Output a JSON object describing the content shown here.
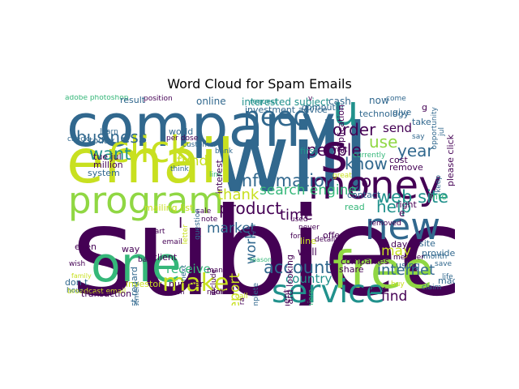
{
  "chart_data": {
    "type": "wordcloud",
    "title": "Word Cloud for Spam Emails",
    "palette": [
      "#440154",
      "#31688e",
      "#21918c",
      "#35b779",
      "#90d743",
      "#c8e020"
    ],
    "words": [
      {
        "text": "subject",
        "weight": 100,
        "color": "#440154",
        "vertical": false
      },
      {
        "text": "will",
        "weight": 78,
        "color": "#31688e",
        "vertical": false
      },
      {
        "text": "company",
        "weight": 48,
        "color": "#31688e",
        "vertical": false
      },
      {
        "text": "email",
        "weight": 50,
        "color": "#c8e020",
        "vertical": false
      },
      {
        "text": "free",
        "weight": 42,
        "color": "#90d743",
        "vertical": false
      },
      {
        "text": "one",
        "weight": 40,
        "color": "#35b779",
        "vertical": false
      },
      {
        "text": "s",
        "weight": 44,
        "color": "#440154",
        "vertical": false
      },
      {
        "text": "u",
        "weight": 34,
        "color": "#21918c",
        "vertical": false
      },
      {
        "text": "money",
        "weight": 32,
        "color": "#440154",
        "vertical": false
      },
      {
        "text": "program",
        "weight": 30,
        "color": "#90d743",
        "vertical": false
      },
      {
        "text": "click",
        "weight": 30,
        "color": "#c8e020",
        "vertical": false
      },
      {
        "text": "new",
        "weight": 30,
        "color": "#31688e",
        "vertical": false
      },
      {
        "text": "service",
        "weight": 26,
        "color": "#21918c",
        "vertical": false
      },
      {
        "text": "need",
        "weight": 22,
        "color": "#31688e",
        "vertical": false
      },
      {
        "text": "make",
        "weight": 20,
        "color": "#c8e020",
        "vertical": false
      },
      {
        "text": "information",
        "weight": 14,
        "color": "#31688e",
        "vertical": false
      },
      {
        "text": "account",
        "weight": 14,
        "color": "#31688e",
        "vertical": false
      },
      {
        "text": "web site",
        "weight": 14,
        "color": "#21918c",
        "vertical": false
      },
      {
        "text": "want",
        "weight": 14,
        "color": "#21918c",
        "vertical": false
      },
      {
        "text": "business",
        "weight": 13,
        "color": "#31688e",
        "vertical": false
      },
      {
        "text": "people",
        "weight": 13,
        "color": "#440154",
        "vertical": false
      },
      {
        "text": "order",
        "weight": 13,
        "color": "#440154",
        "vertical": false
      },
      {
        "text": "year",
        "weight": 13,
        "color": "#31688e",
        "vertical": false
      },
      {
        "text": "help",
        "weight": 13,
        "color": "#21918c",
        "vertical": false
      },
      {
        "text": "know",
        "weight": 13,
        "color": "#31688e",
        "vertical": false
      },
      {
        "text": "go",
        "weight": 14,
        "color": "#440154",
        "vertical": false
      },
      {
        "text": "use",
        "weight": 13,
        "color": "#90d743",
        "vertical": false
      },
      {
        "text": "product",
        "weight": 13,
        "color": "#440154",
        "vertical": false
      },
      {
        "text": "thank",
        "weight": 12,
        "color": "#c8e020",
        "vertical": false
      },
      {
        "text": "internet",
        "weight": 12,
        "color": "#31688e",
        "vertical": false
      },
      {
        "text": "time",
        "weight": 12,
        "color": "#440154",
        "vertical": false
      },
      {
        "text": "market",
        "weight": 11,
        "color": "#31688e",
        "vertical": false
      },
      {
        "text": "fund",
        "weight": 11,
        "color": "#c8e020",
        "vertical": false
      },
      {
        "text": "search engine",
        "weight": 11,
        "color": "#35b779",
        "vertical": false
      },
      {
        "text": "may",
        "weight": 11,
        "color": "#c8e020",
        "vertical": false
      },
      {
        "text": "find",
        "weight": 11,
        "color": "#440154",
        "vertical": false
      },
      {
        "text": "receive",
        "weight": 10,
        "color": "#35b779",
        "vertical": false
      },
      {
        "text": "country",
        "weight": 10,
        "color": "#21918c",
        "vertical": false
      },
      {
        "text": "send",
        "weight": 10,
        "color": "#440154",
        "vertical": false
      },
      {
        "text": "work",
        "weight": 11,
        "color": "#31688e",
        "vertical": true
      },
      {
        "text": "report",
        "weight": 11,
        "color": "#c8e020",
        "vertical": true
      },
      {
        "text": "email address",
        "weight": 12,
        "color": "#31688e",
        "vertical": true
      },
      {
        "text": "interested subject",
        "weight": 8,
        "color": "#21918c",
        "vertical": false
      },
      {
        "text": "investment advice",
        "weight": 7,
        "color": "#31688e",
        "vertical": false
      },
      {
        "text": "adobe photoshop",
        "weight": 6,
        "color": "#35b779",
        "vertical": false
      },
      {
        "text": "position",
        "weight": 6,
        "color": "#440154",
        "vertical": false
      },
      {
        "text": "result",
        "weight": 7,
        "color": "#31688e",
        "vertical": false
      },
      {
        "text": "online",
        "weight": 8,
        "color": "#31688e",
        "vertical": false
      },
      {
        "text": "cash",
        "weight": 8,
        "color": "#31688e",
        "vertical": false
      },
      {
        "text": "now",
        "weight": 8,
        "color": "#31688e",
        "vertical": false
      },
      {
        "text": "come",
        "weight": 6,
        "color": "#31688e",
        "vertical": false
      },
      {
        "text": "request",
        "weight": 6,
        "color": "#21918c",
        "vertical": false
      },
      {
        "text": "computer",
        "weight": 7,
        "color": "#31688e",
        "vertical": false
      },
      {
        "text": "technology",
        "weight": 7,
        "color": "#31688e",
        "vertical": false
      },
      {
        "text": "give",
        "weight": 7,
        "color": "#31688e",
        "vertical": false
      },
      {
        "text": "take",
        "weight": 7,
        "color": "#31688e",
        "vertical": false
      },
      {
        "text": "say",
        "weight": 6,
        "color": "#31688e",
        "vertical": false
      },
      {
        "text": "cost",
        "weight": 7,
        "color": "#440154",
        "vertical": false
      },
      {
        "text": "remove",
        "weight": 7,
        "color": "#440154",
        "vertical": false
      },
      {
        "text": "currently",
        "weight": 6,
        "color": "#35b779",
        "vertical": false
      },
      {
        "text": "first",
        "weight": 7,
        "color": "#21918c",
        "vertical": false
      },
      {
        "text": "visit",
        "weight": 6,
        "color": "#440154",
        "vertical": false
      },
      {
        "text": "world",
        "weight": 7,
        "color": "#31688e",
        "vertical": false
      },
      {
        "text": "per dose",
        "weight": 6,
        "color": "#440154",
        "vertical": false
      },
      {
        "text": "customer",
        "weight": 6,
        "color": "#31688e",
        "vertical": false
      },
      {
        "text": "today",
        "weight": 7,
        "color": "#31688e",
        "vertical": false
      },
      {
        "text": "check",
        "weight": 6,
        "color": "#31688e",
        "vertical": false
      },
      {
        "text": "learn",
        "weight": 6,
        "color": "#31688e",
        "vertical": false
      },
      {
        "text": "tue jul",
        "weight": 7,
        "color": "#440154",
        "vertical": false
      },
      {
        "text": "million",
        "weight": 7,
        "color": "#440154",
        "vertical": false
      },
      {
        "text": "system",
        "weight": 7,
        "color": "#31688e",
        "vertical": false
      },
      {
        "text": "mailing list",
        "weight": 7,
        "color": "#c8e020",
        "vertical": false
      },
      {
        "text": "sale",
        "weight": 6,
        "color": "#440154",
        "vertical": false
      },
      {
        "text": "link",
        "weight": 6,
        "color": "#35b779",
        "vertical": false
      },
      {
        "text": "think",
        "weight": 6,
        "color": "#31688e",
        "vertical": false
      },
      {
        "text": "bank",
        "weight": 6,
        "color": "#31688e",
        "vertical": false
      },
      {
        "text": "look",
        "weight": 6,
        "color": "#440154",
        "vertical": false
      },
      {
        "text": "form",
        "weight": 6,
        "color": "#440154",
        "vertical": false
      },
      {
        "text": "used",
        "weight": 6,
        "color": "#440154",
        "vertical": false
      },
      {
        "text": "never",
        "weight": 6,
        "color": "#440154",
        "vertical": false
      },
      {
        "text": "great",
        "weight": 6,
        "color": "#c8e020",
        "vertical": false
      },
      {
        "text": "contact",
        "weight": 7,
        "color": "#31688e",
        "vertical": false
      },
      {
        "text": "removed",
        "weight": 6,
        "color": "#440154",
        "vertical": false
      },
      {
        "text": "right",
        "weight": 7,
        "color": "#440154",
        "vertical": false
      },
      {
        "text": "read",
        "weight": 7,
        "color": "#35b779",
        "vertical": false
      },
      {
        "text": "into",
        "weight": 7,
        "color": "#35b779",
        "vertical": false
      },
      {
        "text": "keep",
        "weight": 6,
        "color": "#31688e",
        "vertical": true
      },
      {
        "text": "site",
        "weight": 7,
        "color": "#31688e",
        "vertical": false
      },
      {
        "text": "day",
        "weight": 7,
        "color": "#440154",
        "vertical": false
      },
      {
        "text": "provide",
        "weight": 7,
        "color": "#31688e",
        "vertical": false
      },
      {
        "text": "month",
        "weight": 6,
        "color": "#31688e",
        "vertical": false
      },
      {
        "text": "save",
        "weight": 6,
        "color": "#31688e",
        "vertical": false
      },
      {
        "text": "life",
        "weight": 6,
        "color": "#31688e",
        "vertical": false
      },
      {
        "text": "made",
        "weight": 7,
        "color": "#31688e",
        "vertical": false
      },
      {
        "text": "claim",
        "weight": 6,
        "color": "#31688e",
        "vertical": false
      },
      {
        "text": "buy",
        "weight": 6,
        "color": "#c8e020",
        "vertical": false
      },
      {
        "text": "pay",
        "weight": 7,
        "color": "#440154",
        "vertical": false
      },
      {
        "text": "using",
        "weight": 7,
        "color": "#31688e",
        "vertical": false
      },
      {
        "text": "member",
        "weight": 6,
        "color": "#440154",
        "vertical": false
      },
      {
        "text": "companies",
        "weight": 7,
        "color": "#440154",
        "vertical": false
      },
      {
        "text": "share",
        "weight": 7,
        "color": "#440154",
        "vertical": false
      },
      {
        "text": "line",
        "weight": 7,
        "color": "#c8e020",
        "vertical": false
      },
      {
        "text": "offer",
        "weight": 7,
        "color": "#440154",
        "vertical": false
      },
      {
        "text": "detail",
        "weight": 6,
        "color": "#440154",
        "vertical": false
      },
      {
        "text": "well",
        "weight": 8,
        "color": "#440154",
        "vertical": false
      },
      {
        "text": "forward looking",
        "weight": 7,
        "color": "#440154",
        "vertical": true
      },
      {
        "text": "looking statement",
        "weight": 7,
        "color": "#440154",
        "vertical": true
      },
      {
        "text": "adobe premiere",
        "weight": 6,
        "color": "#35b779",
        "vertical": true
      },
      {
        "text": "opportunity",
        "weight": 6,
        "color": "#31688e",
        "vertical": true
      },
      {
        "text": "jul",
        "weight": 6,
        "color": "#31688e",
        "vertical": true
      },
      {
        "text": "please click",
        "weight": 7,
        "color": "#440154",
        "vertical": true
      },
      {
        "text": "week",
        "weight": 6,
        "color": "#440154",
        "vertical": false
      },
      {
        "text": "application",
        "weight": 7,
        "color": "#440154",
        "vertical": true
      },
      {
        "text": "soft viagra",
        "weight": 6,
        "color": "#440154",
        "vertical": true
      },
      {
        "text": "complete",
        "weight": 6,
        "color": "#31688e",
        "vertical": true
      },
      {
        "text": "next",
        "weight": 6,
        "color": "#31688e",
        "vertical": true
      },
      {
        "text": "include",
        "weight": 6,
        "color": "#440154",
        "vertical": true
      },
      {
        "text": "question",
        "weight": 6,
        "color": "#31688e",
        "vertical": true
      },
      {
        "text": "letter",
        "weight": 6,
        "color": "#c8e020",
        "vertical": true
      },
      {
        "text": "interest",
        "weight": 7,
        "color": "#440154",
        "vertical": true
      },
      {
        "text": "investment",
        "weight": 6,
        "color": "#31688e",
        "vertical": true
      },
      {
        "text": "note",
        "weight": 6,
        "color": "#440154",
        "vertical": false
      },
      {
        "text": "part",
        "weight": 6,
        "color": "#440154",
        "vertical": false
      },
      {
        "text": "email",
        "weight": 6,
        "color": "#440154",
        "vertical": false
      },
      {
        "text": "client",
        "weight": 7,
        "color": "#440154",
        "vertical": false
      },
      {
        "text": "way",
        "weight": 7,
        "color": "#440154",
        "vertical": false
      },
      {
        "text": "back",
        "weight": 6,
        "color": "#440154",
        "vertical": false
      },
      {
        "text": "best regard",
        "weight": 7,
        "color": "#31688e",
        "vertical": true
      },
      {
        "text": "hour",
        "weight": 6,
        "color": "#31688e",
        "vertical": false
      },
      {
        "text": "even",
        "weight": 7,
        "color": "#440154",
        "vertical": false
      },
      {
        "text": "wish",
        "weight": 6,
        "color": "#440154",
        "vertical": false
      },
      {
        "text": "family",
        "weight": 5,
        "color": "#c8e020",
        "vertical": false
      },
      {
        "text": "don t",
        "weight": 7,
        "color": "#31688e",
        "vertical": false
      },
      {
        "text": "broadcast email",
        "weight": 6,
        "color": "#c8e020",
        "vertical": false
      },
      {
        "text": "transaction",
        "weight": 7,
        "color": "#440154",
        "vertical": false
      },
      {
        "text": "person",
        "weight": 5,
        "color": "#440154",
        "vertical": false
      },
      {
        "text": "name",
        "weight": 6,
        "color": "#440154",
        "vertical": false
      },
      {
        "text": "dollar",
        "weight": 6,
        "color": "#440154",
        "vertical": false
      },
      {
        "text": "investor",
        "weight": 7,
        "color": "#c8e020",
        "vertical": false
      },
      {
        "text": "number",
        "weight": 7,
        "color": "#440154",
        "vertical": false
      },
      {
        "text": "many",
        "weight": 6,
        "color": "#440154",
        "vertical": false
      },
      {
        "text": "call",
        "weight": 6,
        "color": "#c8e020",
        "vertical": false
      },
      {
        "text": "reason",
        "weight": 5,
        "color": "#35b779",
        "vertical": false
      },
      {
        "text": "I",
        "weight": 12,
        "color": "#440154",
        "vertical": false
      },
      {
        "text": "e",
        "weight": 8,
        "color": "#440154",
        "vertical": false
      },
      {
        "text": "v",
        "weight": 6,
        "color": "#440154",
        "vertical": false
      },
      {
        "text": "g",
        "weight": 7,
        "color": "#440154",
        "vertical": false
      }
    ]
  }
}
